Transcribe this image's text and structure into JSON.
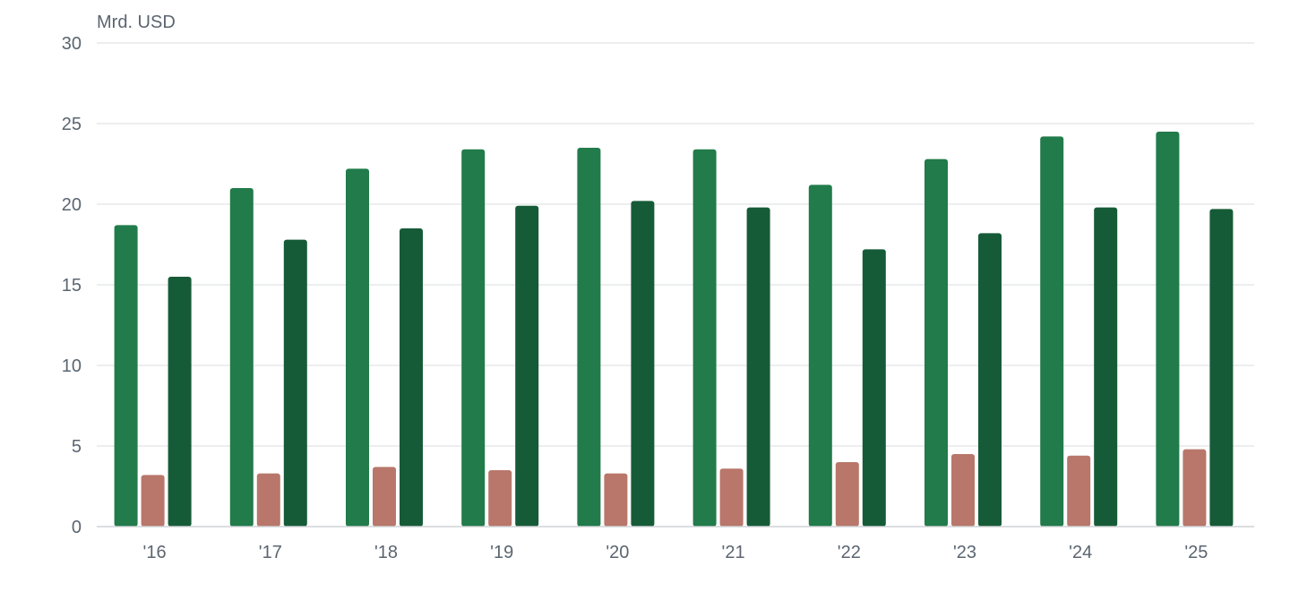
{
  "chart_data": {
    "type": "bar",
    "unit_label": "Mrd. USD",
    "categories": [
      "'16",
      "'17",
      "'18",
      "'19",
      "'20",
      "'21",
      "'22",
      "'23",
      "'24",
      "'25"
    ],
    "series": [
      {
        "color": "#217b4a",
        "values": [
          18.7,
          21.0,
          22.2,
          23.4,
          23.5,
          23.4,
          21.2,
          22.8,
          24.2,
          24.5
        ]
      },
      {
        "color": "#b8776a",
        "values": [
          3.2,
          3.3,
          3.7,
          3.5,
          3.3,
          3.6,
          4.0,
          4.5,
          4.4,
          4.8
        ]
      },
      {
        "color": "#165b37",
        "values": [
          15.5,
          17.8,
          18.5,
          19.9,
          20.2,
          19.8,
          17.2,
          18.2,
          19.8,
          19.7
        ]
      }
    ],
    "ylim": [
      0,
      30
    ],
    "yticks": [
      0,
      5,
      10,
      15,
      20,
      25,
      30
    ],
    "ytick_labels": [
      "0",
      "5",
      "10",
      "15",
      "20",
      "25",
      "30"
    ],
    "grid": true,
    "xlabel": "",
    "ylabel": ""
  }
}
